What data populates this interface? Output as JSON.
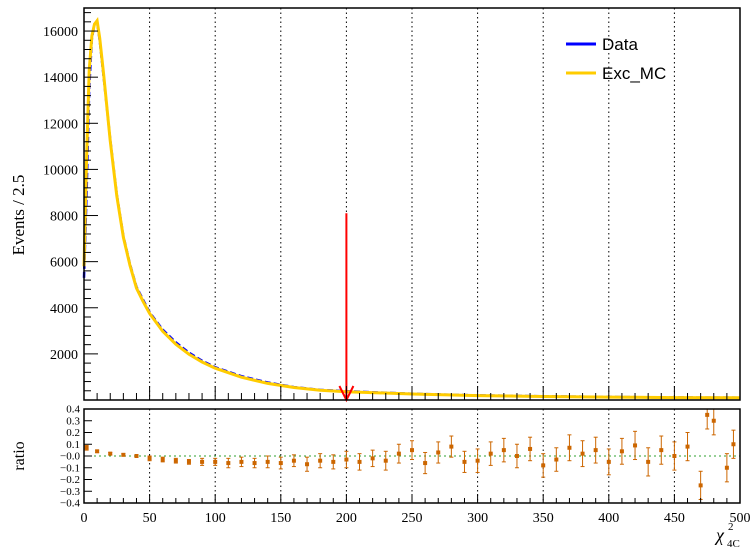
{
  "chart_data": {
    "type": "line",
    "x_range": [
      0,
      500
    ],
    "bin_width": 2.5,
    "main_panel": {
      "ylabel": "Events / 2.5",
      "ylim": [
        0,
        17000
      ],
      "y_ticks": [
        0,
        2000,
        4000,
        6000,
        8000,
        10000,
        12000,
        14000,
        16000
      ],
      "y_tick_labels": [
        "2000",
        "4000",
        "6000",
        "8000",
        "10000",
        "12000",
        "14000",
        "16000"
      ],
      "vertical_gridlines": true,
      "legend_position": "top-right",
      "series": [
        {
          "name": "Data",
          "color": "#0000ff",
          "x": [
            0,
            2,
            4,
            6,
            8,
            10,
            12,
            15,
            20,
            25,
            30,
            35,
            40,
            45,
            50,
            60,
            70,
            80,
            90,
            100,
            120,
            140,
            160,
            180,
            200,
            250,
            300,
            350,
            400,
            450,
            500
          ],
          "y": [
            5300,
            9000,
            13500,
            15700,
            16300,
            16400,
            15600,
            14000,
            11300,
            8900,
            7100,
            5900,
            4900,
            4350,
            3800,
            3050,
            2500,
            2050,
            1700,
            1420,
            1030,
            760,
            560,
            440,
            380,
            270,
            200,
            160,
            130,
            110,
            100
          ]
        },
        {
          "name": "Exc_MC",
          "color": "#ffcc00",
          "x": [
            0,
            2,
            4,
            6,
            8,
            10,
            12,
            15,
            20,
            25,
            30,
            35,
            40,
            45,
            50,
            60,
            70,
            80,
            90,
            100,
            120,
            140,
            160,
            180,
            200,
            250,
            300,
            350,
            400,
            450,
            500
          ],
          "y": [
            5800,
            10500,
            14300,
            15800,
            16300,
            16450,
            15700,
            14100,
            11250,
            8850,
            7050,
            5850,
            4850,
            4280,
            3750,
            2980,
            2420,
            1980,
            1650,
            1380,
            990,
            720,
            540,
            420,
            360,
            260,
            190,
            150,
            125,
            105,
            95
          ]
        }
      ],
      "annotation": {
        "type": "arrow",
        "x": 200,
        "y_from": 8100,
        "y_to": 0,
        "color": "#ff0000"
      }
    },
    "ratio_panel": {
      "ylabel": "ratio",
      "ylim": [
        -0.4,
        0.4
      ],
      "y_tick_labels": [
        "−0.4",
        "−0.3",
        "−0.2",
        "−0.1",
        "−0.0",
        "0.1",
        "0.2",
        "0.3",
        "0.4"
      ],
      "color": "#cc6600",
      "x": [
        2,
        10,
        20,
        30,
        40,
        50,
        60,
        70,
        80,
        90,
        100,
        110,
        120,
        130,
        140,
        150,
        160,
        170,
        180,
        190,
        200,
        210,
        220,
        230,
        240,
        250,
        260,
        270,
        280,
        290,
        300,
        310,
        320,
        330,
        340,
        350,
        360,
        370,
        380,
        390,
        400,
        410,
        420,
        430,
        440,
        450,
        460,
        470,
        475,
        480,
        490,
        495
      ],
      "y": [
        0.07,
        0.04,
        0.02,
        0.01,
        0.0,
        -0.02,
        -0.03,
        -0.04,
        -0.05,
        -0.05,
        -0.05,
        -0.06,
        -0.05,
        -0.06,
        -0.05,
        -0.06,
        -0.04,
        -0.07,
        -0.04,
        -0.05,
        -0.03,
        -0.05,
        -0.02,
        -0.04,
        0.02,
        0.05,
        -0.06,
        0.03,
        0.08,
        -0.05,
        -0.04,
        0.02,
        0.05,
        0.0,
        0.06,
        -0.08,
        -0.03,
        0.07,
        0.02,
        0.05,
        -0.05,
        0.04,
        0.09,
        -0.05,
        0.05,
        0.0,
        0.08,
        -0.25,
        0.35,
        0.3,
        -0.1,
        0.1
      ],
      "err": [
        0.02,
        0.01,
        0.01,
        0.01,
        0.01,
        0.02,
        0.02,
        0.02,
        0.02,
        0.03,
        0.03,
        0.04,
        0.04,
        0.04,
        0.05,
        0.05,
        0.05,
        0.06,
        0.06,
        0.06,
        0.07,
        0.07,
        0.07,
        0.08,
        0.08,
        0.08,
        0.09,
        0.09,
        0.09,
        0.09,
        0.1,
        0.1,
        0.1,
        0.1,
        0.1,
        0.1,
        0.1,
        0.11,
        0.11,
        0.11,
        0.11,
        0.11,
        0.12,
        0.12,
        0.12,
        0.12,
        0.12,
        0.12,
        0.12,
        0.12,
        0.12,
        0.12
      ]
    },
    "x_tick_labels": [
      "0",
      "50",
      "100",
      "150",
      "200",
      "250",
      "300",
      "350",
      "400",
      "450",
      "500"
    ],
    "xlabel_base": "χ",
    "xlabel_sup": "2",
    "xlabel_sub": "4C"
  }
}
